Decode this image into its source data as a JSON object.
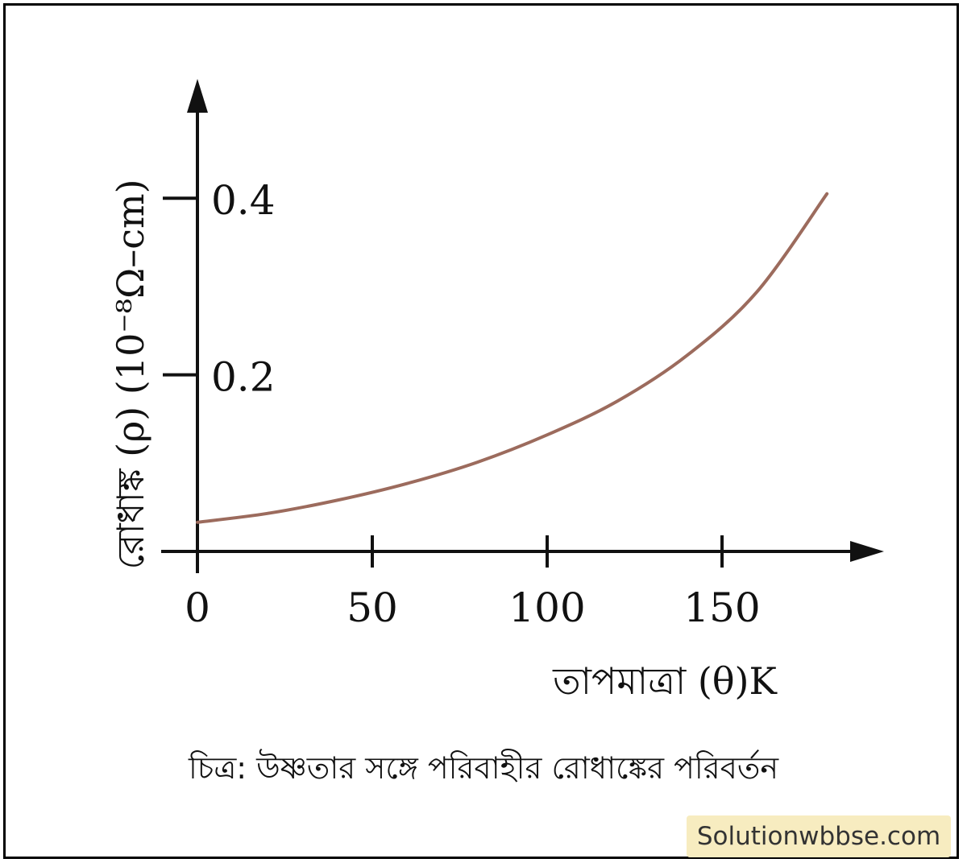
{
  "chart_data": {
    "type": "line",
    "xlabel": "তাপমাত্রা (θ)K",
    "ylabel": "রোধাঙ্ক (ρ) (10⁻⁸Ω–cm)",
    "x_ticks": [
      0,
      50,
      100,
      150
    ],
    "y_ticks": [
      0.2,
      0.4
    ],
    "xlim": [
      0,
      195
    ],
    "ylim": [
      0,
      0.55
    ],
    "series": [
      {
        "x": [
          0,
          20,
          40,
          60,
          80,
          100,
          120,
          140,
          160,
          180
        ],
        "y": [
          0.033,
          0.043,
          0.058,
          0.077,
          0.101,
          0.132,
          0.17,
          0.222,
          0.294,
          0.405
        ]
      }
    ],
    "curve_color": "#9c6b5d",
    "axis_color": "#111111"
  },
  "caption": "চিত্র: উষ্ণতার সঙ্গে পরিবাহীর রোধাঙ্কের পরিবর্তন",
  "watermark": "Solutionwbbse.com"
}
